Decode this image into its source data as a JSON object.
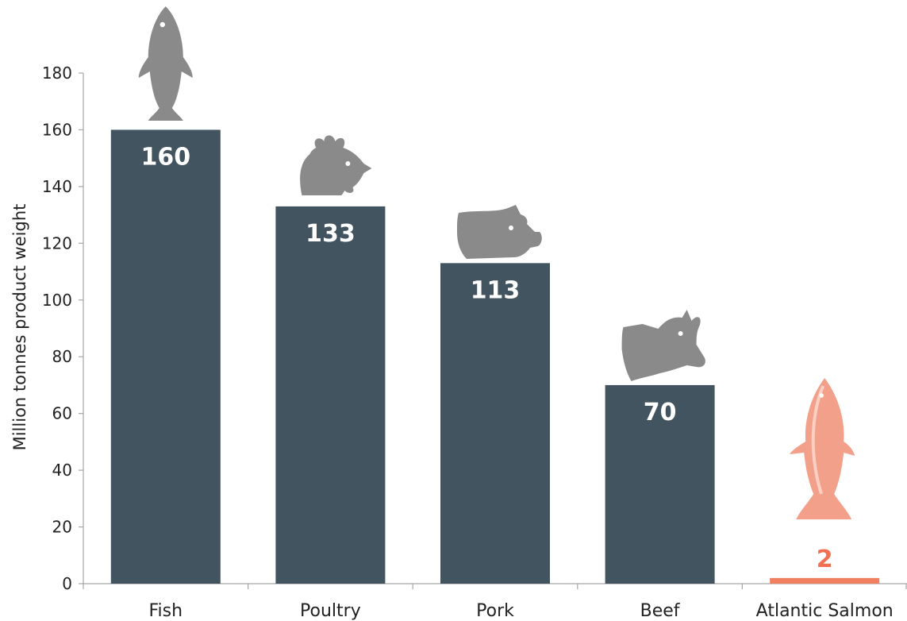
{
  "chart_data": {
    "type": "bar",
    "categories": [
      "Fish",
      "Poultry",
      "Pork",
      "Beef",
      "Atlantic Salmon"
    ],
    "values": [
      160,
      133,
      113,
      70,
      2
    ],
    "value_labels": [
      "160",
      "133",
      "113",
      "70",
      "2"
    ],
    "title": "",
    "xlabel": "",
    "ylabel": "Million tonnes product weight",
    "ylim": [
      0,
      180
    ],
    "yticks": [
      0,
      20,
      40,
      60,
      80,
      100,
      120,
      140,
      160,
      180
    ],
    "grid": false,
    "legend": "none",
    "bar_colors": [
      "#435461",
      "#435461",
      "#435461",
      "#435461",
      "#f08060"
    ],
    "value_label_colors": [
      "#ffffff",
      "#ffffff",
      "#ffffff",
      "#ffffff",
      "#f07050"
    ],
    "icons": [
      "fish-icon",
      "chicken-icon",
      "pig-icon",
      "cow-icon",
      "salmon-icon"
    ],
    "icon_color": "#8a8a8a",
    "salmon_color": "#f3a08a"
  }
}
